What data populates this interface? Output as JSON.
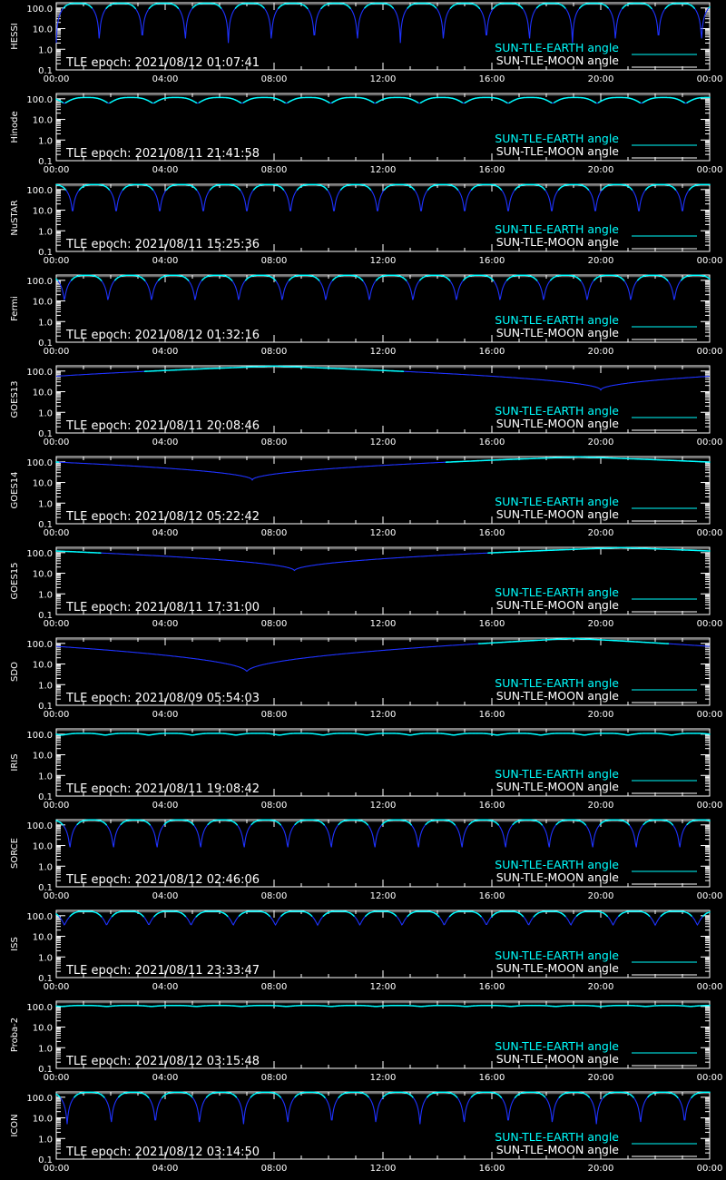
{
  "colors": {
    "background": "#000000",
    "axes": "#ffffff",
    "sun_earth": "#00ffff",
    "sun_moon": "#ffffff",
    "angle_curve": "#1e32ff"
  },
  "x_tick_labels": [
    "00:00",
    "04:00",
    "08:00",
    "12:00",
    "16:00",
    "20:00",
    "00:00"
  ],
  "y_tick_labels": [
    "100.0",
    "10.0",
    "1.0",
    "0.1"
  ],
  "legend": {
    "sun_earth_label": "SUN-TLE-EARTH angle",
    "sun_moon_label": "SUN-TLE-MOON angle"
  },
  "chart_data": [
    {
      "type": "line",
      "name": "HESSI",
      "epoch_label": "TLE epoch: 2021/08/12 01:07:41",
      "x_unit": "hours",
      "xlim": [
        0,
        24
      ],
      "ylim": [
        0.1,
        180
      ],
      "y_scale": "log",
      "grid": false,
      "legend_position": "bottom-right",
      "curve": {
        "kind": "orbit",
        "period_h": 1.58,
        "phase_h": 0.0,
        "min": 2.0,
        "max": 170
      },
      "moon_angle": 150
    },
    {
      "type": "line",
      "name": "Hinode",
      "epoch_label": "TLE epoch: 2021/08/11 21:41:58",
      "x_unit": "hours",
      "xlim": [
        0,
        24
      ],
      "ylim": [
        0.1,
        180
      ],
      "y_scale": "log",
      "grid": false,
      "legend_position": "bottom-right",
      "curve": {
        "kind": "orbit",
        "period_h": 1.63,
        "phase_h": 0.3,
        "min": 60,
        "max": 115
      },
      "moon_angle": 150
    },
    {
      "type": "line",
      "name": "NuSTAR",
      "epoch_label": "TLE epoch: 2021/08/11 15:25:36",
      "x_unit": "hours",
      "xlim": [
        0,
        24
      ],
      "ylim": [
        0.1,
        180
      ],
      "y_scale": "log",
      "grid": false,
      "legend_position": "bottom-right",
      "curve": {
        "kind": "orbit",
        "period_h": 1.6,
        "phase_h": 0.6,
        "min": 6.5,
        "max": 175
      },
      "moon_angle": 150
    },
    {
      "type": "line",
      "name": "Fermi",
      "epoch_label": "TLE epoch: 2021/08/12 01:32:16",
      "x_unit": "hours",
      "xlim": [
        0,
        24
      ],
      "ylim": [
        0.1,
        180
      ],
      "y_scale": "log",
      "grid": false,
      "legend_position": "bottom-right",
      "curve": {
        "kind": "orbit",
        "period_h": 1.6,
        "phase_h": 0.3,
        "min": 10,
        "max": 175
      },
      "moon_angle": 150
    },
    {
      "type": "line",
      "name": "GOES13",
      "epoch_label": "TLE epoch: 2021/08/11 20:08:46",
      "x_unit": "hours",
      "xlim": [
        0,
        24
      ],
      "ylim": [
        0.1,
        180
      ],
      "y_scale": "log",
      "grid": false,
      "legend_position": "bottom-right",
      "curve": {
        "kind": "geo",
        "min_h": 20.0,
        "min": 12,
        "max": 175
      },
      "moon_angle": 150
    },
    {
      "type": "line",
      "name": "GOES14",
      "epoch_label": "TLE epoch: 2021/08/12 05:22:42",
      "x_unit": "hours",
      "xlim": [
        0,
        24
      ],
      "ylim": [
        0.1,
        180
      ],
      "y_scale": "log",
      "grid": false,
      "legend_position": "bottom-right",
      "curve": {
        "kind": "geo",
        "min_h": 7.2,
        "min": 13,
        "max": 175
      },
      "moon_angle": 150
    },
    {
      "type": "line",
      "name": "GOES15",
      "epoch_label": "TLE epoch: 2021/08/11 17:31:00",
      "x_unit": "hours",
      "xlim": [
        0,
        24
      ],
      "ylim": [
        0.1,
        180
      ],
      "y_scale": "log",
      "grid": false,
      "legend_position": "bottom-right",
      "curve": {
        "kind": "geo",
        "min_h": 8.75,
        "min": 13,
        "max": 175
      },
      "moon_angle": 150
    },
    {
      "type": "line",
      "name": "SDO",
      "epoch_label": "TLE epoch: 2021/08/09 05:54:03",
      "x_unit": "hours",
      "xlim": [
        0,
        24
      ],
      "ylim": [
        0.1,
        180
      ],
      "y_scale": "log",
      "grid": false,
      "legend_position": "bottom-right",
      "curve": {
        "kind": "geo",
        "min_h": 7.0,
        "min": 4,
        "max": 175
      },
      "moon_angle": 150
    },
    {
      "type": "line",
      "name": "IRIS",
      "epoch_label": "TLE epoch: 2021/08/11 19:08:42",
      "x_unit": "hours",
      "xlim": [
        0,
        24
      ],
      "ylim": [
        0.1,
        180
      ],
      "y_scale": "log",
      "grid": false,
      "legend_position": "bottom-right",
      "curve": {
        "kind": "orbit",
        "period_h": 1.6,
        "phase_h": 0.2,
        "min": 90,
        "max": 110
      },
      "moon_angle": 150
    },
    {
      "type": "line",
      "name": "SORCE",
      "epoch_label": "TLE epoch: 2021/08/12 02:46:06",
      "x_unit": "hours",
      "xlim": [
        0,
        24
      ],
      "ylim": [
        0.1,
        180
      ],
      "y_scale": "log",
      "grid": false,
      "legend_position": "bottom-right",
      "curve": {
        "kind": "orbit",
        "period_h": 1.6,
        "phase_h": 0.5,
        "min": 7,
        "max": 175
      },
      "moon_angle": 150
    },
    {
      "type": "line",
      "name": "ISS",
      "epoch_label": "TLE epoch: 2021/08/11 23:33:47",
      "x_unit": "hours",
      "xlim": [
        0,
        24
      ],
      "ylim": [
        0.1,
        180
      ],
      "y_scale": "log",
      "grid": false,
      "legend_position": "bottom-right",
      "curve": {
        "kind": "orbit",
        "period_h": 1.55,
        "phase_h": 0.3,
        "min": 35,
        "max": 165
      },
      "moon_angle": 150
    },
    {
      "type": "line",
      "name": "Proba-2",
      "epoch_label": "TLE epoch: 2021/08/12 03:15:48",
      "x_unit": "hours",
      "xlim": [
        0,
        24
      ],
      "ylim": [
        0.1,
        180
      ],
      "y_scale": "log",
      "grid": false,
      "legend_position": "bottom-right",
      "curve": {
        "kind": "orbit",
        "period_h": 1.65,
        "phase_h": 0.2,
        "min": 100,
        "max": 112
      },
      "moon_angle": 150
    },
    {
      "type": "line",
      "name": "ICON",
      "epoch_label": "TLE epoch: 2021/08/12 03:14:50",
      "x_unit": "hours",
      "xlim": [
        0,
        24
      ],
      "ylim": [
        0.1,
        180
      ],
      "y_scale": "log",
      "grid": false,
      "legend_position": "bottom-right",
      "curve": {
        "kind": "orbit",
        "period_h": 1.62,
        "phase_h": 0.4,
        "min": 5,
        "max": 175
      },
      "moon_angle": 150
    }
  ]
}
